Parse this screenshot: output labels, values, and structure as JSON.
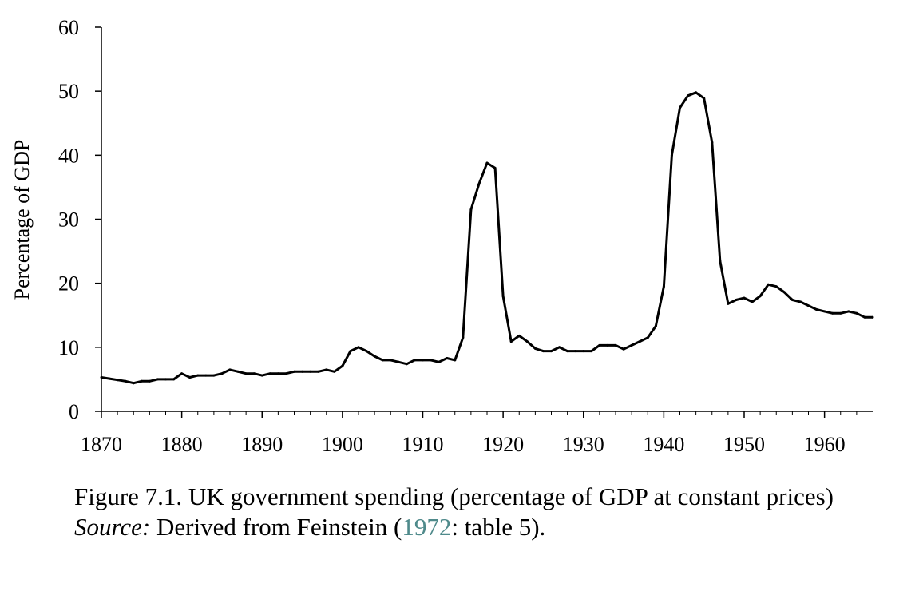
{
  "chart_data": {
    "type": "line",
    "title": "",
    "xlabel": "",
    "ylabel": "Percentage of GDP",
    "xlim": [
      1870,
      1966
    ],
    "ylim": [
      0,
      60
    ],
    "x_ticks": [
      "1870",
      "1880",
      "1890",
      "1900",
      "1910",
      "1920",
      "1930",
      "1940",
      "1950",
      "1960"
    ],
    "y_ticks": [
      "0",
      "10",
      "20",
      "30",
      "40",
      "50",
      "60"
    ],
    "grid": false,
    "legend": "none",
    "series": [
      {
        "color": "#000000",
        "points": [
          [
            1870,
            5.3
          ],
          [
            1871,
            5.1
          ],
          [
            1872,
            4.9
          ],
          [
            1873,
            4.7
          ],
          [
            1874,
            4.4
          ],
          [
            1875,
            4.7
          ],
          [
            1876,
            4.7
          ],
          [
            1877,
            5.0
          ],
          [
            1878,
            5.0
          ],
          [
            1879,
            5.0
          ],
          [
            1880,
            5.9
          ],
          [
            1881,
            5.3
          ],
          [
            1882,
            5.6
          ],
          [
            1883,
            5.6
          ],
          [
            1884,
            5.6
          ],
          [
            1885,
            5.9
          ],
          [
            1886,
            6.5
          ],
          [
            1887,
            6.2
          ],
          [
            1888,
            5.9
          ],
          [
            1889,
            5.9
          ],
          [
            1890,
            5.6
          ],
          [
            1891,
            5.9
          ],
          [
            1892,
            5.9
          ],
          [
            1893,
            5.9
          ],
          [
            1894,
            6.2
          ],
          [
            1895,
            6.2
          ],
          [
            1896,
            6.2
          ],
          [
            1897,
            6.2
          ],
          [
            1898,
            6.5
          ],
          [
            1899,
            6.2
          ],
          [
            1900,
            7.1
          ],
          [
            1901,
            9.4
          ],
          [
            1902,
            10.0
          ],
          [
            1903,
            9.4
          ],
          [
            1904,
            8.6
          ],
          [
            1905,
            8.0
          ],
          [
            1906,
            8.0
          ],
          [
            1907,
            7.7
          ],
          [
            1908,
            7.4
          ],
          [
            1909,
            8.0
          ],
          [
            1910,
            8.0
          ],
          [
            1911,
            8.0
          ],
          [
            1912,
            7.7
          ],
          [
            1913,
            8.3
          ],
          [
            1914,
            8.0
          ],
          [
            1915,
            11.5
          ],
          [
            1916,
            31.5
          ],
          [
            1917,
            35.5
          ],
          [
            1918,
            38.8
          ],
          [
            1919,
            38.0
          ],
          [
            1920,
            18.0
          ],
          [
            1921,
            10.9
          ],
          [
            1922,
            11.8
          ],
          [
            1923,
            10.9
          ],
          [
            1924,
            9.8
          ],
          [
            1925,
            9.4
          ],
          [
            1926,
            9.4
          ],
          [
            1927,
            10.0
          ],
          [
            1928,
            9.4
          ],
          [
            1929,
            9.4
          ],
          [
            1930,
            9.4
          ],
          [
            1931,
            9.4
          ],
          [
            1932,
            10.3
          ],
          [
            1933,
            10.3
          ],
          [
            1934,
            10.3
          ],
          [
            1935,
            9.7
          ],
          [
            1936,
            10.3
          ],
          [
            1937,
            10.9
          ],
          [
            1938,
            11.5
          ],
          [
            1939,
            13.3
          ],
          [
            1940,
            19.5
          ],
          [
            1941,
            40.0
          ],
          [
            1942,
            47.4
          ],
          [
            1943,
            49.3
          ],
          [
            1944,
            49.8
          ],
          [
            1945,
            48.9
          ],
          [
            1946,
            42.0
          ],
          [
            1947,
            23.5
          ],
          [
            1948,
            16.8
          ],
          [
            1949,
            17.4
          ],
          [
            1950,
            17.7
          ],
          [
            1951,
            17.1
          ],
          [
            1952,
            18.0
          ],
          [
            1953,
            19.8
          ],
          [
            1954,
            19.5
          ],
          [
            1955,
            18.6
          ],
          [
            1956,
            17.4
          ],
          [
            1957,
            17.1
          ],
          [
            1958,
            16.5
          ],
          [
            1959,
            15.9
          ],
          [
            1960,
            15.6
          ],
          [
            1961,
            15.3
          ],
          [
            1962,
            15.3
          ],
          [
            1963,
            15.6
          ],
          [
            1964,
            15.3
          ],
          [
            1965,
            14.7
          ],
          [
            1966,
            14.7
          ]
        ]
      }
    ]
  },
  "caption": {
    "figure_text": "Figure 7.1. UK government spending (percentage of GDP at constant prices)",
    "source_label": "Source:",
    "source_text_before": "Derived from Feinstein (",
    "source_link": "1972",
    "source_text_after": ": table 5)."
  }
}
